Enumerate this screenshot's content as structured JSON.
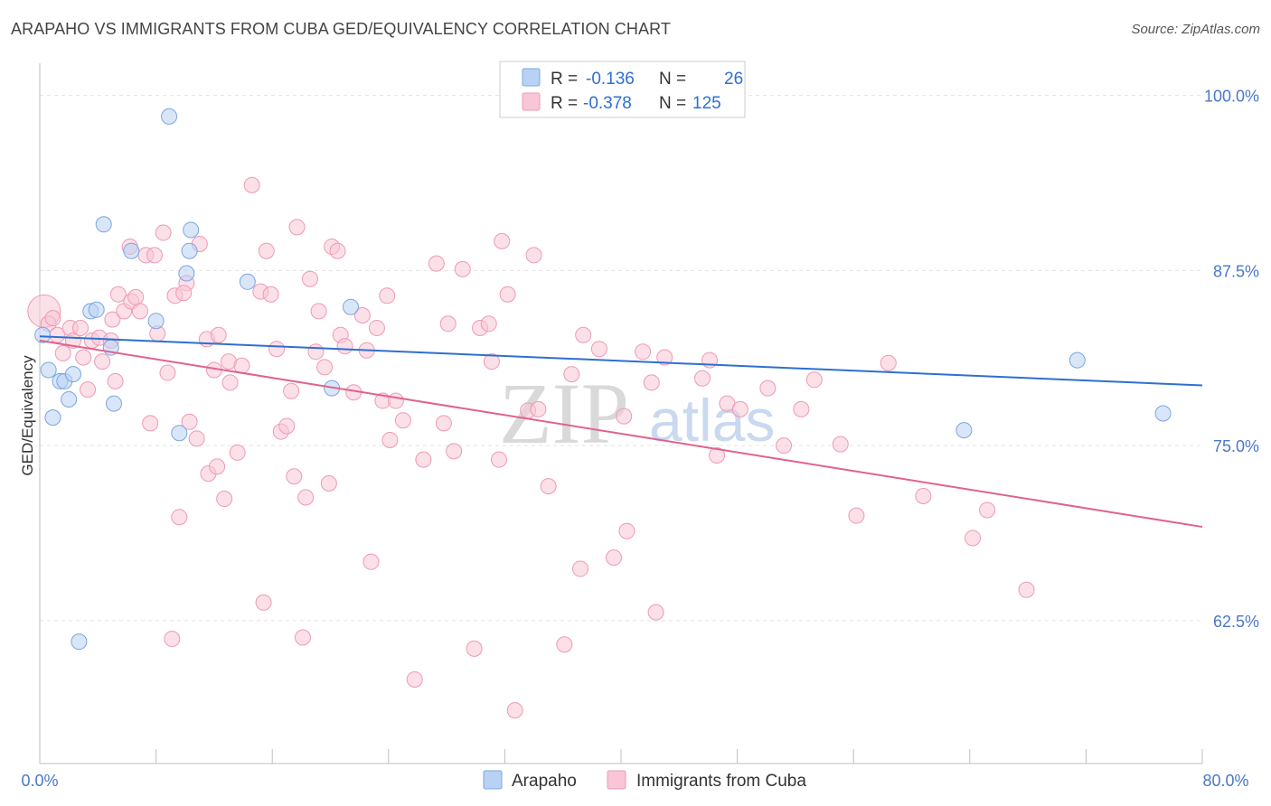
{
  "header": {
    "title": "ARAPAHO VS IMMIGRANTS FROM CUBA GED/EQUIVALENCY CORRELATION CHART",
    "source": "Source: ZipAtlas.com"
  },
  "watermark": {
    "zip": "ZIP",
    "atlas": "atlas"
  },
  "legend": {
    "r_label": "R =",
    "n_label": "N =",
    "rows": [
      {
        "r": "-0.136",
        "n": "26",
        "fill": "#b9d1f3",
        "stroke": "#7aa6e3"
      },
      {
        "r": "-0.378",
        "n": "125",
        "fill": "#f8c6d6",
        "stroke": "#ee9ab5"
      }
    ]
  },
  "bottom_legend": [
    {
      "label": "Arapaho",
      "fill": "#b9d1f3",
      "stroke": "#7aa6e3"
    },
    {
      "label": "Immigrants from Cuba",
      "fill": "#f8c6d6",
      "stroke": "#ee9ab5"
    }
  ],
  "chart_data": {
    "type": "scatter",
    "title": "ARAPAHO VS IMMIGRANTS FROM CUBA GED/EQUIVALENCY CORRELATION CHART",
    "xlabel": "",
    "ylabel": "GED/Equivalency",
    "xlim": [
      0,
      80
    ],
    "ylim": [
      52.3,
      102.3
    ],
    "x_tick_labels": {
      "min": "0.0%",
      "max": "80.0%"
    },
    "y_ticks": [
      {
        "value": 100.0,
        "label": "100.0%"
      },
      {
        "value": 87.5,
        "label": "87.5%"
      },
      {
        "value": 75.0,
        "label": "75.0%"
      },
      {
        "value": 62.5,
        "label": "62.5%"
      }
    ],
    "grid": true,
    "series": [
      {
        "name": "Arapaho",
        "color": "#7aa6e3",
        "fill": "#b9d1f3",
        "trend": {
          "x": [
            0,
            80
          ],
          "y": [
            82.8,
            79.3
          ],
          "color": "#2f6fd0"
        },
        "points": [
          {
            "x": 0.2,
            "y": 82.9
          },
          {
            "x": 0.6,
            "y": 80.4
          },
          {
            "x": 0.9,
            "y": 77.0
          },
          {
            "x": 1.4,
            "y": 79.6
          },
          {
            "x": 1.7,
            "y": 79.6
          },
          {
            "x": 2.0,
            "y": 78.3
          },
          {
            "x": 2.3,
            "y": 80.1
          },
          {
            "x": 2.7,
            "y": 61.0
          },
          {
            "x": 3.5,
            "y": 84.6
          },
          {
            "x": 3.9,
            "y": 84.7
          },
          {
            "x": 4.4,
            "y": 90.8
          },
          {
            "x": 4.9,
            "y": 82.0
          },
          {
            "x": 5.1,
            "y": 78.0
          },
          {
            "x": 6.3,
            "y": 88.9
          },
          {
            "x": 8.0,
            "y": 83.9
          },
          {
            "x": 8.9,
            "y": 98.5
          },
          {
            "x": 9.6,
            "y": 75.9
          },
          {
            "x": 10.1,
            "y": 87.3
          },
          {
            "x": 10.3,
            "y": 88.9
          },
          {
            "x": 10.4,
            "y": 90.4
          },
          {
            "x": 14.3,
            "y": 86.7
          },
          {
            "x": 20.1,
            "y": 79.1
          },
          {
            "x": 21.4,
            "y": 84.9
          },
          {
            "x": 63.6,
            "y": 76.1
          },
          {
            "x": 71.4,
            "y": 81.1
          },
          {
            "x": 77.3,
            "y": 77.3
          }
        ]
      },
      {
        "name": "Immigrants from Cuba",
        "color": "#ee9ab5",
        "fill": "#f8c6d6",
        "trend": {
          "x": [
            0,
            80
          ],
          "y": [
            82.5,
            69.2
          ],
          "color": "#e0628e"
        },
        "points": [
          {
            "x": 0.3,
            "y": 84.6,
            "big": true
          },
          {
            "x": 0.6,
            "y": 83.7
          },
          {
            "x": 0.9,
            "y": 84.1
          },
          {
            "x": 1.2,
            "y": 82.9
          },
          {
            "x": 1.6,
            "y": 81.6
          },
          {
            "x": 2.1,
            "y": 83.4
          },
          {
            "x": 2.3,
            "y": 82.5
          },
          {
            "x": 2.8,
            "y": 83.4
          },
          {
            "x": 3.0,
            "y": 81.3
          },
          {
            "x": 3.3,
            "y": 79.0
          },
          {
            "x": 3.6,
            "y": 82.5
          },
          {
            "x": 4.1,
            "y": 82.7
          },
          {
            "x": 4.3,
            "y": 81.0
          },
          {
            "x": 4.9,
            "y": 82.5
          },
          {
            "x": 5.0,
            "y": 84.0
          },
          {
            "x": 5.2,
            "y": 79.6
          },
          {
            "x": 5.4,
            "y": 85.8
          },
          {
            "x": 5.8,
            "y": 84.6
          },
          {
            "x": 6.2,
            "y": 89.2
          },
          {
            "x": 6.3,
            "y": 85.3
          },
          {
            "x": 6.6,
            "y": 85.6
          },
          {
            "x": 6.9,
            "y": 84.6
          },
          {
            "x": 7.3,
            "y": 88.6
          },
          {
            "x": 7.6,
            "y": 76.6
          },
          {
            "x": 7.9,
            "y": 88.6
          },
          {
            "x": 8.1,
            "y": 83.0
          },
          {
            "x": 8.5,
            "y": 90.2
          },
          {
            "x": 8.8,
            "y": 80.2
          },
          {
            "x": 9.1,
            "y": 61.2
          },
          {
            "x": 9.3,
            "y": 85.7
          },
          {
            "x": 9.6,
            "y": 69.9
          },
          {
            "x": 10.1,
            "y": 86.6
          },
          {
            "x": 10.3,
            "y": 76.7
          },
          {
            "x": 10.8,
            "y": 75.5
          },
          {
            "x": 11.0,
            "y": 89.4
          },
          {
            "x": 11.5,
            "y": 82.6
          },
          {
            "x": 11.6,
            "y": 73.0
          },
          {
            "x": 12.0,
            "y": 80.4
          },
          {
            "x": 12.2,
            "y": 73.5
          },
          {
            "x": 12.3,
            "y": 82.9
          },
          {
            "x": 12.7,
            "y": 71.2
          },
          {
            "x": 13.1,
            "y": 79.5
          },
          {
            "x": 13.0,
            "y": 81.0
          },
          {
            "x": 13.6,
            "y": 74.5
          },
          {
            "x": 13.9,
            "y": 80.7
          },
          {
            "x": 14.6,
            "y": 93.6
          },
          {
            "x": 15.2,
            "y": 86.0
          },
          {
            "x": 15.4,
            "y": 63.8
          },
          {
            "x": 15.6,
            "y": 88.9
          },
          {
            "x": 15.9,
            "y": 85.8
          },
          {
            "x": 16.3,
            "y": 81.9
          },
          {
            "x": 16.6,
            "y": 76.0
          },
          {
            "x": 17.0,
            "y": 76.4
          },
          {
            "x": 17.3,
            "y": 78.9
          },
          {
            "x": 17.5,
            "y": 72.8
          },
          {
            "x": 17.7,
            "y": 90.6
          },
          {
            "x": 18.1,
            "y": 61.3
          },
          {
            "x": 18.3,
            "y": 71.3
          },
          {
            "x": 18.6,
            "y": 86.9
          },
          {
            "x": 19.0,
            "y": 81.7
          },
          {
            "x": 19.2,
            "y": 84.6
          },
          {
            "x": 19.6,
            "y": 80.6
          },
          {
            "x": 19.9,
            "y": 72.3
          },
          {
            "x": 20.1,
            "y": 89.2
          },
          {
            "x": 20.5,
            "y": 88.9
          },
          {
            "x": 20.7,
            "y": 82.9
          },
          {
            "x": 21.0,
            "y": 82.1
          },
          {
            "x": 21.6,
            "y": 78.8
          },
          {
            "x": 22.2,
            "y": 84.3
          },
          {
            "x": 22.5,
            "y": 81.8
          },
          {
            "x": 22.8,
            "y": 66.7
          },
          {
            "x": 23.2,
            "y": 83.4
          },
          {
            "x": 23.6,
            "y": 78.2
          },
          {
            "x": 23.9,
            "y": 85.7
          },
          {
            "x": 24.1,
            "y": 75.4
          },
          {
            "x": 24.5,
            "y": 78.2
          },
          {
            "x": 25.0,
            "y": 76.8
          },
          {
            "x": 25.8,
            "y": 58.3
          },
          {
            "x": 26.4,
            "y": 74.0
          },
          {
            "x": 27.3,
            "y": 88.0
          },
          {
            "x": 27.8,
            "y": 76.6
          },
          {
            "x": 28.1,
            "y": 83.7
          },
          {
            "x": 28.5,
            "y": 74.6
          },
          {
            "x": 29.1,
            "y": 87.6
          },
          {
            "x": 29.9,
            "y": 60.5
          },
          {
            "x": 30.3,
            "y": 83.4
          },
          {
            "x": 30.9,
            "y": 83.7
          },
          {
            "x": 31.1,
            "y": 81.0
          },
          {
            "x": 31.6,
            "y": 74.0
          },
          {
            "x": 31.8,
            "y": 89.6
          },
          {
            "x": 32.2,
            "y": 85.8
          },
          {
            "x": 32.7,
            "y": 56.1
          },
          {
            "x": 33.6,
            "y": 77.5
          },
          {
            "x": 34.0,
            "y": 88.6
          },
          {
            "x": 34.3,
            "y": 77.6
          },
          {
            "x": 35.0,
            "y": 72.1
          },
          {
            "x": 36.1,
            "y": 60.8
          },
          {
            "x": 36.6,
            "y": 80.1
          },
          {
            "x": 37.2,
            "y": 66.2
          },
          {
            "x": 37.4,
            "y": 82.9
          },
          {
            "x": 38.5,
            "y": 81.9
          },
          {
            "x": 39.5,
            "y": 67.0
          },
          {
            "x": 40.2,
            "y": 77.1
          },
          {
            "x": 40.4,
            "y": 68.9
          },
          {
            "x": 41.5,
            "y": 81.7
          },
          {
            "x": 42.1,
            "y": 79.5
          },
          {
            "x": 42.4,
            "y": 63.1
          },
          {
            "x": 43.0,
            "y": 81.3
          },
          {
            "x": 45.6,
            "y": 79.8
          },
          {
            "x": 46.1,
            "y": 81.1
          },
          {
            "x": 46.6,
            "y": 74.3
          },
          {
            "x": 47.3,
            "y": 78.0
          },
          {
            "x": 48.2,
            "y": 77.6
          },
          {
            "x": 50.1,
            "y": 79.1
          },
          {
            "x": 51.2,
            "y": 75.0
          },
          {
            "x": 52.4,
            "y": 77.6
          },
          {
            "x": 53.3,
            "y": 79.7
          },
          {
            "x": 55.1,
            "y": 75.1
          },
          {
            "x": 56.2,
            "y": 70.0
          },
          {
            "x": 58.4,
            "y": 80.9
          },
          {
            "x": 60.8,
            "y": 71.4
          },
          {
            "x": 64.2,
            "y": 68.4
          },
          {
            "x": 65.2,
            "y": 70.4
          },
          {
            "x": 67.9,
            "y": 64.7
          },
          {
            "x": 9.9,
            "y": 85.9
          }
        ]
      }
    ]
  }
}
